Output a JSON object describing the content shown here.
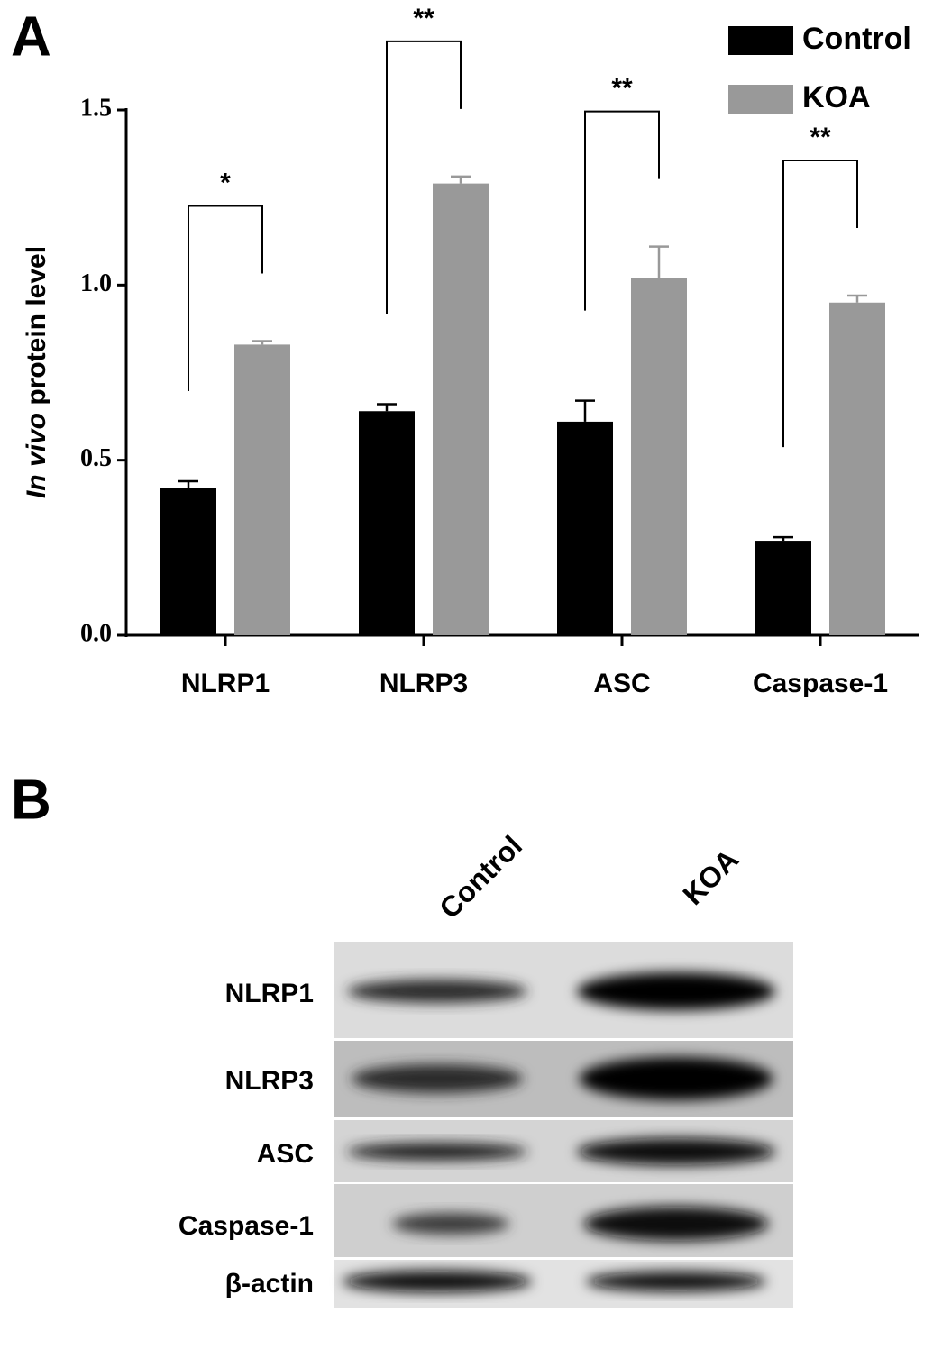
{
  "chart_data": {
    "type": "bar",
    "panel": "A",
    "y_label": {
      "italic": "In vivo",
      "rest": "protein level"
    },
    "categories": [
      "NLRP1",
      "NLRP3",
      "ASC",
      "Caspase-1"
    ],
    "series": [
      {
        "name": "Control",
        "color": "#000000",
        "values": [
          0.42,
          0.64,
          0.61,
          0.27
        ],
        "errors": [
          0.02,
          0.02,
          0.06,
          0.01
        ]
      },
      {
        "name": "KOA",
        "color": "#999999",
        "values": [
          0.83,
          1.29,
          1.02,
          0.95
        ],
        "errors": [
          0.01,
          0.02,
          0.09,
          0.02
        ]
      }
    ],
    "significance": [
      "*",
      "**",
      "**",
      "**"
    ],
    "ylim": [
      0,
      1.5
    ],
    "yticks": [
      {
        "value": 0,
        "label": "0.0"
      },
      {
        "value": 0.5,
        "label": "0.5"
      },
      {
        "value": 1,
        "label": "1.0"
      },
      {
        "value": 1.5,
        "label": "1.5"
      }
    ],
    "legend": "top-right"
  },
  "blot": {
    "panel": "B",
    "lanes": [
      "Control",
      "KOA"
    ],
    "rows": [
      "NLRP1",
      "NLRP3",
      "ASC",
      "Caspase-1",
      "β-actin"
    ]
  }
}
